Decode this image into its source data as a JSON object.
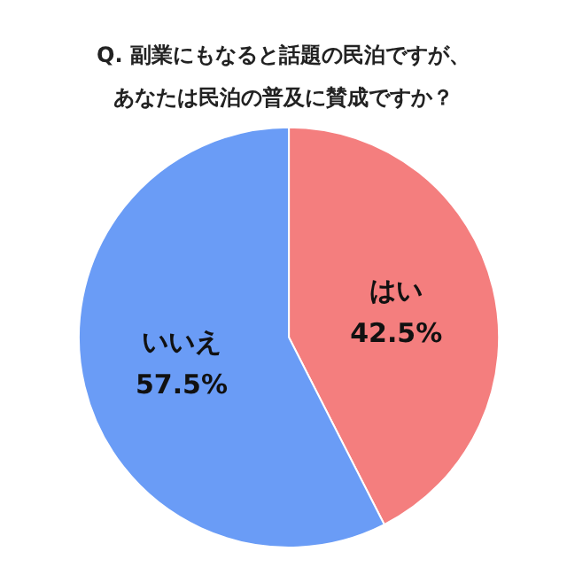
{
  "chart_data": {
    "type": "pie",
    "title": "Q. 副業にもなると話題の民泊ですが、あなたは民泊の普及に賛成ですか？",
    "categories": [
      "はい",
      "いいえ"
    ],
    "values": [
      42.5,
      57.5
    ],
    "value_labels": [
      "42.5%",
      "57.5%"
    ],
    "colors": [
      "#f47e7e",
      "#6a9cf6"
    ],
    "legend": false
  }
}
